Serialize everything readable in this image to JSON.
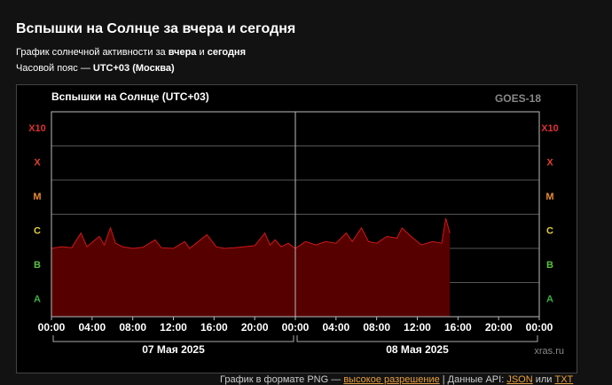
{
  "header": {
    "title": "Вспышки на Солнце за вчера и сегодня",
    "subtitle": [
      "График солнечной активности за ",
      "вчера",
      " и ",
      "сегодня"
    ],
    "timezone": [
      "Часовой пояс — ",
      "UTC+03 (Москва)"
    ]
  },
  "chart_data": {
    "type": "area",
    "title": "Вспышки на Солнце (UTC+03)",
    "source": "GOES-18",
    "watermark": "xras.ru",
    "color": "#d01818",
    "fill": "#560000",
    "x": [
      0,
      1,
      2,
      2.9,
      3.5,
      4.7,
      5.2,
      5.8,
      6.3,
      7,
      8,
      9,
      10.2,
      10.8,
      12,
      13.1,
      13.6,
      15.3,
      15.7,
      16.2,
      17,
      18,
      19,
      20,
      21,
      21.5,
      22,
      22.6,
      23.3,
      24,
      25,
      26,
      27,
      28,
      29,
      29.6,
      30.5,
      31.2,
      32,
      33,
      34,
      34.5,
      35.2,
      36.4,
      37.5,
      38.4,
      38.8,
      39.2
    ],
    "values": [
      2.0,
      2.05,
      2.02,
      2.45,
      2.05,
      2.35,
      2.1,
      2.6,
      2.15,
      2.05,
      2.0,
      2.03,
      2.25,
      2.02,
      2.0,
      2.2,
      2.0,
      2.4,
      2.25,
      2.05,
      2.0,
      2.02,
      2.05,
      2.08,
      2.45,
      2.1,
      2.25,
      2.05,
      2.15,
      2.0,
      2.2,
      2.1,
      2.2,
      2.15,
      2.45,
      2.2,
      2.6,
      2.2,
      2.15,
      2.35,
      2.3,
      2.6,
      2.4,
      2.1,
      2.2,
      2.15,
      2.88,
      2.45
    ],
    "xlim": [
      0,
      48
    ],
    "xticks": [
      {
        "value": 0,
        "label": "00:00"
      },
      {
        "value": 4,
        "label": "04:00"
      },
      {
        "value": 8,
        "label": "08:00"
      },
      {
        "value": 12,
        "label": "12:00"
      },
      {
        "value": 16,
        "label": "16:00"
      },
      {
        "value": 20,
        "label": "20:00"
      },
      {
        "value": 24,
        "label": "00:00"
      },
      {
        "value": 28,
        "label": "04:00"
      },
      {
        "value": 32,
        "label": "08:00"
      },
      {
        "value": 36,
        "label": "12:00"
      },
      {
        "value": 40,
        "label": "16:00"
      },
      {
        "value": 44,
        "label": "20:00"
      },
      {
        "value": 48,
        "label": "00:00"
      }
    ],
    "days": [
      "07 Мая 2025",
      "08 Мая 2025"
    ],
    "ylim": [
      0,
      6
    ],
    "yticks": [
      {
        "value": 0.5,
        "label": "A"
      },
      {
        "value": 1.5,
        "label": "B"
      },
      {
        "value": 2.5,
        "label": "C"
      },
      {
        "value": 3.5,
        "label": "M"
      },
      {
        "value": 4.5,
        "label": "X"
      },
      {
        "value": 5.5,
        "label": "X10"
      }
    ],
    "ytick_colors": [
      "#3cb043",
      "#5cc040",
      "#e0d040",
      "#e88a30",
      "#e04030",
      "#e03030"
    ],
    "grid": true
  },
  "footer": [
    "График в формате PNG — ",
    "высокое разрешение",
    " | Данные API: ",
    "JSON",
    " или ",
    "TXT"
  ]
}
